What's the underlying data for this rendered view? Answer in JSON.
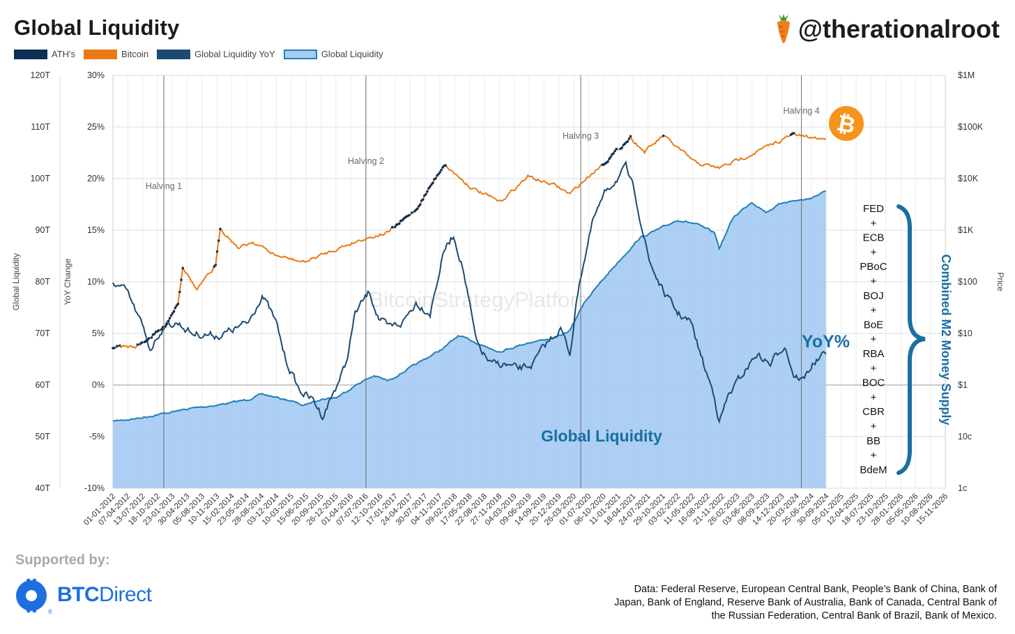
{
  "header": {
    "title": "Global Liquidity",
    "handle": "@therationalroot"
  },
  "legend": [
    {
      "label": "ATH's",
      "color": "#0d2f57"
    },
    {
      "label": "Bitcoin",
      "color": "#ea7b12"
    },
    {
      "label": "Global Liquidity YoY",
      "color": "#1b4a73"
    },
    {
      "label": "Global Liquidity",
      "color": "#a8ccf2"
    }
  ],
  "footer": {
    "supported_by": "Supported by:",
    "sponsor_part1": "BTC",
    "sponsor_part2": "Direct",
    "source_note": "Data: Federal Reserve, European Central Bank, People’s Bank of China, Bank of Japan, Bank of England, Reserve Bank of Australia, Bank of Canada, Central Bank of the Russian Federation, Central Bank of Brazil, Bank of Mexico."
  },
  "colors": {
    "bitcoin": "#ea7b12",
    "ath": "#0d2f57",
    "yoy": "#1b4a73",
    "liquidity_line": "#1f7fb8",
    "liquidity_fill": "#a8ccf2",
    "annotation": "#1a6fa3"
  },
  "chart_data": {
    "type": "line",
    "watermark": "BitcoinStrategyPlatform.com",
    "x_ticks": [
      "01-01-2012",
      "07-04-2012",
      "13-07-2012",
      "18-10-2012",
      "23-01-2013",
      "30-04-2013",
      "05-08-2013",
      "10-11-2013",
      "15-02-2014",
      "23-05-2014",
      "28-08-2014",
      "03-12-2014",
      "10-03-2015",
      "15-06-2015",
      "20-09-2015",
      "26-12-2015",
      "01-04-2016",
      "07-07-2016",
      "12-10-2016",
      "17-01-2017",
      "24-04-2017",
      "30-07-2017",
      "04-11-2017",
      "09-02-2018",
      "17-05-2018",
      "22-08-2018",
      "27-11-2018",
      "04-03-2019",
      "09-06-2019",
      "14-09-2019",
      "20-12-2019",
      "26-03-2020",
      "01-07-2020",
      "06-10-2020",
      "11-01-2021",
      "18-04-2021",
      "24-07-2021",
      "29-10-2021",
      "03-02-2022",
      "11-05-2022",
      "16-08-2022",
      "21-11-2022",
      "26-02-2023",
      "03-06-2023",
      "08-09-2023",
      "14-12-2023",
      "20-03-2024",
      "25-06-2024",
      "30-09-2024",
      "05-01-2025",
      "12-04-2025",
      "18-07-2025",
      "23-10-2025",
      "28-01-2026",
      "05-05-2026",
      "10-08-2026",
      "15-11-2026"
    ],
    "axes": {
      "liquidity": {
        "label": "Global Liquidity",
        "range": [
          40,
          120
        ],
        "ticks": [
          "40T",
          "50T",
          "60T",
          "70T",
          "80T",
          "90T",
          "100T",
          "110T",
          "120T"
        ]
      },
      "yoy": {
        "label": "YoY Change",
        "range": [
          -10,
          30
        ],
        "ticks": [
          "-10%",
          "-5%",
          "0%",
          "5%",
          "10%",
          "15%",
          "20%",
          "25%",
          "30%"
        ]
      },
      "price": {
        "label": "Price",
        "scale": "log",
        "range": [
          0.01,
          1000000
        ],
        "ticks": [
          "1c",
          "10c",
          "$1",
          "$10",
          "$100",
          "$1K",
          "$10K",
          "$100K",
          "$1M"
        ]
      }
    },
    "halvings": [
      {
        "label": "Halving 1",
        "date": "2012-11-28"
      },
      {
        "label": "Halving 2",
        "date": "2016-07-09"
      },
      {
        "label": "Halving 3",
        "date": "2020-05-11"
      },
      {
        "label": "Halving 4",
        "date": "2024-04-20"
      }
    ],
    "annotations": {
      "yoy_label": "YoY%",
      "liquidity_label": "Global Liquidity",
      "m2_label": "Combined M2 Money Supply",
      "banks": [
        "FED",
        "+",
        "ECB",
        "+",
        "PBoC",
        "+",
        "BOJ",
        "+",
        "BoE",
        "+",
        "RBA",
        "+",
        "BOC",
        "+",
        "CBR",
        "+",
        "BB",
        "+",
        "BdeM"
      ]
    },
    "series": [
      {
        "name": "Global Liquidity",
        "unit": "T",
        "points": [
          [
            "2012-01-01",
            53
          ],
          [
            "2012-06-01",
            53.5
          ],
          [
            "2012-12-01",
            54.5
          ],
          [
            "2013-06-01",
            55.5
          ],
          [
            "2013-12-01",
            56.2
          ],
          [
            "2014-06-01",
            57.2
          ],
          [
            "2014-09-01",
            58.2
          ],
          [
            "2014-12-01",
            57.6
          ],
          [
            "2015-03-01",
            57
          ],
          [
            "2015-06-01",
            56
          ],
          [
            "2015-09-01",
            57.2
          ],
          [
            "2016-01-01",
            57.6
          ],
          [
            "2016-06-01",
            60.5
          ],
          [
            "2016-09-01",
            61.8
          ],
          [
            "2016-12-01",
            60.8
          ],
          [
            "2017-06-01",
            64
          ],
          [
            "2017-12-01",
            67.2
          ],
          [
            "2018-03-01",
            69.5
          ],
          [
            "2018-06-01",
            68.6
          ],
          [
            "2018-09-01",
            67.4
          ],
          [
            "2018-12-01",
            66.5
          ],
          [
            "2019-06-01",
            68.2
          ],
          [
            "2019-12-01",
            69.2
          ],
          [
            "2020-03-01",
            70.5
          ],
          [
            "2020-06-01",
            76
          ],
          [
            "2020-12-01",
            82.5
          ],
          [
            "2021-06-01",
            88.5
          ],
          [
            "2021-12-01",
            91
          ],
          [
            "2022-02-01",
            92
          ],
          [
            "2022-06-01",
            91.2
          ],
          [
            "2022-10-01",
            89.5
          ],
          [
            "2022-11-01",
            86.5
          ],
          [
            "2023-02-01",
            92.5
          ],
          [
            "2023-06-01",
            95.5
          ],
          [
            "2023-09-01",
            93.5
          ],
          [
            "2024-01-01",
            95.5
          ],
          [
            "2024-06-01",
            96
          ],
          [
            "2024-09-27",
            97.5
          ]
        ]
      },
      {
        "name": "Global Liquidity YoY",
        "unit": "%",
        "points": [
          [
            "2012-01-01",
            10
          ],
          [
            "2012-04-01",
            9
          ],
          [
            "2012-07-01",
            6
          ],
          [
            "2012-09-01",
            3.5
          ],
          [
            "2012-12-01",
            5.8
          ],
          [
            "2013-03-01",
            6
          ],
          [
            "2013-06-01",
            5
          ],
          [
            "2013-12-01",
            4.8
          ],
          [
            "2014-06-01",
            6
          ],
          [
            "2014-09-01",
            8.8
          ],
          [
            "2014-12-01",
            6
          ],
          [
            "2015-02-01",
            2.5
          ],
          [
            "2015-05-01",
            -0.5
          ],
          [
            "2015-08-01",
            -1.5
          ],
          [
            "2015-10-01",
            -3
          ],
          [
            "2016-01-01",
            0
          ],
          [
            "2016-03-01",
            2
          ],
          [
            "2016-05-01",
            7
          ],
          [
            "2016-08-01",
            9
          ],
          [
            "2016-10-01",
            6.5
          ],
          [
            "2016-12-01",
            5.5
          ],
          [
            "2017-03-01",
            6
          ],
          [
            "2017-06-01",
            8
          ],
          [
            "2017-09-01",
            7
          ],
          [
            "2017-12-01",
            13
          ],
          [
            "2018-02-01",
            14.5
          ],
          [
            "2018-04-01",
            11.5
          ],
          [
            "2018-07-01",
            4
          ],
          [
            "2018-10-01",
            2
          ],
          [
            "2019-01-01",
            2
          ],
          [
            "2019-04-01",
            1.5
          ],
          [
            "2019-07-01",
            2
          ],
          [
            "2019-10-01",
            4
          ],
          [
            "2020-01-01",
            5.5
          ],
          [
            "2020-03-01",
            3
          ],
          [
            "2020-05-01",
            10
          ],
          [
            "2020-08-01",
            16
          ],
          [
            "2020-11-01",
            19
          ],
          [
            "2021-01-01",
            20
          ],
          [
            "2021-03-01",
            21
          ],
          [
            "2021-05-01",
            18.5
          ],
          [
            "2021-08-01",
            12
          ],
          [
            "2021-11-01",
            9
          ],
          [
            "2022-02-01",
            7
          ],
          [
            "2022-05-01",
            6
          ],
          [
            "2022-08-01",
            1.5
          ],
          [
            "2022-10-01",
            -1
          ],
          [
            "2022-11-01",
            -3.5
          ],
          [
            "2023-01-01",
            -1
          ],
          [
            "2023-04-01",
            1
          ],
          [
            "2023-07-01",
            3
          ],
          [
            "2023-10-01",
            2
          ],
          [
            "2024-01-01",
            4
          ],
          [
            "2024-03-01",
            1
          ],
          [
            "2024-05-01",
            0.5
          ],
          [
            "2024-07-01",
            2
          ],
          [
            "2024-09-27",
            3
          ]
        ]
      },
      {
        "name": "Bitcoin",
        "unit": "USD",
        "points": [
          [
            "2012-01-01",
            5.5
          ],
          [
            "2012-06-01",
            5.5
          ],
          [
            "2012-12-01",
            13
          ],
          [
            "2013-03-01",
            40
          ],
          [
            "2013-04-01",
            200
          ],
          [
            "2013-07-01",
            70
          ],
          [
            "2013-11-01",
            200
          ],
          [
            "2013-12-01",
            1100
          ],
          [
            "2014-04-01",
            450
          ],
          [
            "2014-07-01",
            600
          ],
          [
            "2014-12-01",
            320
          ],
          [
            "2015-06-01",
            240
          ],
          [
            "2015-12-01",
            400
          ],
          [
            "2016-06-01",
            650
          ],
          [
            "2016-12-01",
            900
          ],
          [
            "2017-06-01",
            2500
          ],
          [
            "2017-12-01",
            19000
          ],
          [
            "2018-06-01",
            6500
          ],
          [
            "2018-12-01",
            3500
          ],
          [
            "2019-06-01",
            11000
          ],
          [
            "2019-12-01",
            7200
          ],
          [
            "2020-03-01",
            5000
          ],
          [
            "2020-07-01",
            11000
          ],
          [
            "2020-12-01",
            28000
          ],
          [
            "2021-04-01",
            63000
          ],
          [
            "2021-07-01",
            33000
          ],
          [
            "2021-11-01",
            67000
          ],
          [
            "2022-06-01",
            20000
          ],
          [
            "2022-11-01",
            16000
          ],
          [
            "2023-06-01",
            30000
          ],
          [
            "2024-03-01",
            72000
          ],
          [
            "2024-06-01",
            62000
          ],
          [
            "2024-09-27",
            60000
          ]
        ]
      }
    ]
  }
}
